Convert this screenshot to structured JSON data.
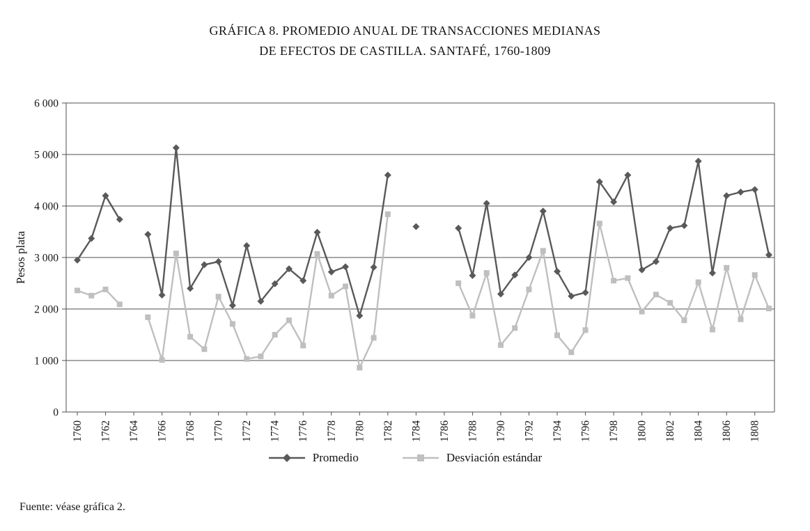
{
  "page": {
    "background": "#ffffff"
  },
  "chart_data": {
    "type": "line",
    "title_line1": "GRÁFICA 8. PROMEDIO ANUAL DE TRANSACCIONES MEDIANAS",
    "title_line2": "DE EFECTOS DE CASTILLA. SANTAFÉ, 1760-1809",
    "ylabel": "Pesos plata",
    "source": "Fuente: véase gráfica 2.",
    "ylim": [
      0,
      6000
    ],
    "ytick_step": 1000,
    "ytick_labels": [
      "0",
      "1 000",
      "2 000",
      "3 000",
      "4 000",
      "5 000",
      "6 000"
    ],
    "x_range": [
      1760,
      1809
    ],
    "xtick_years": [
      1760,
      1762,
      1764,
      1766,
      1768,
      1770,
      1772,
      1774,
      1776,
      1778,
      1780,
      1782,
      1784,
      1786,
      1788,
      1790,
      1792,
      1794,
      1796,
      1798,
      1800,
      1802,
      1804,
      1806,
      1808
    ],
    "grid": true,
    "grid_color": "#4f4f4f",
    "legend_position": "bottom",
    "series": [
      {
        "name": "Promedio",
        "marker": "diamond",
        "color": "#595959",
        "points": [
          [
            1760,
            2950
          ],
          [
            1761,
            3370
          ],
          [
            1762,
            4200
          ],
          [
            1763,
            3740
          ],
          [
            1765,
            3450
          ],
          [
            1766,
            2270
          ],
          [
            1767,
            5130
          ],
          [
            1768,
            2400
          ],
          [
            1769,
            2860
          ],
          [
            1770,
            2920
          ],
          [
            1771,
            2070
          ],
          [
            1772,
            3230
          ],
          [
            1773,
            2150
          ],
          [
            1774,
            2490
          ],
          [
            1775,
            2780
          ],
          [
            1776,
            2550
          ],
          [
            1777,
            3490
          ],
          [
            1778,
            2720
          ],
          [
            1779,
            2820
          ],
          [
            1780,
            1870
          ],
          [
            1781,
            2810
          ],
          [
            1782,
            4600
          ],
          [
            1784,
            3600
          ],
          [
            1787,
            3570
          ],
          [
            1788,
            2650
          ],
          [
            1789,
            4050
          ],
          [
            1790,
            2290
          ],
          [
            1791,
            2660
          ],
          [
            1792,
            3000
          ],
          [
            1793,
            3900
          ],
          [
            1794,
            2730
          ],
          [
            1795,
            2250
          ],
          [
            1796,
            2320
          ],
          [
            1797,
            4470
          ],
          [
            1798,
            4080
          ],
          [
            1799,
            4600
          ],
          [
            1800,
            2760
          ],
          [
            1801,
            2920
          ],
          [
            1802,
            3570
          ],
          [
            1803,
            3620
          ],
          [
            1804,
            4870
          ],
          [
            1805,
            2700
          ],
          [
            1806,
            4200
          ],
          [
            1807,
            4270
          ],
          [
            1808,
            4320
          ],
          [
            1809,
            3050
          ]
        ]
      },
      {
        "name": "Desviación estándar",
        "marker": "square",
        "color": "#bfbfbf",
        "points": [
          [
            1760,
            2360
          ],
          [
            1761,
            2260
          ],
          [
            1762,
            2380
          ],
          [
            1763,
            2090
          ],
          [
            1765,
            1840
          ],
          [
            1766,
            1010
          ],
          [
            1767,
            3080
          ],
          [
            1768,
            1460
          ],
          [
            1769,
            1220
          ],
          [
            1770,
            2240
          ],
          [
            1771,
            1710
          ],
          [
            1772,
            1030
          ],
          [
            1773,
            1080
          ],
          [
            1774,
            1500
          ],
          [
            1775,
            1780
          ],
          [
            1776,
            1290
          ],
          [
            1777,
            3070
          ],
          [
            1778,
            2260
          ],
          [
            1779,
            2440
          ],
          [
            1780,
            860
          ],
          [
            1781,
            1440
          ],
          [
            1782,
            3840
          ],
          [
            1787,
            2500
          ],
          [
            1788,
            1870
          ],
          [
            1789,
            2700
          ],
          [
            1790,
            1300
          ],
          [
            1791,
            1630
          ],
          [
            1792,
            2380
          ],
          [
            1793,
            3130
          ],
          [
            1794,
            1490
          ],
          [
            1795,
            1160
          ],
          [
            1796,
            1590
          ],
          [
            1797,
            3660
          ],
          [
            1798,
            2550
          ],
          [
            1799,
            2600
          ],
          [
            1800,
            1950
          ],
          [
            1801,
            2280
          ],
          [
            1802,
            2120
          ],
          [
            1803,
            1780
          ],
          [
            1804,
            2520
          ],
          [
            1805,
            1600
          ],
          [
            1806,
            2800
          ],
          [
            1807,
            1800
          ],
          [
            1808,
            2660
          ],
          [
            1809,
            2010
          ]
        ]
      }
    ]
  }
}
